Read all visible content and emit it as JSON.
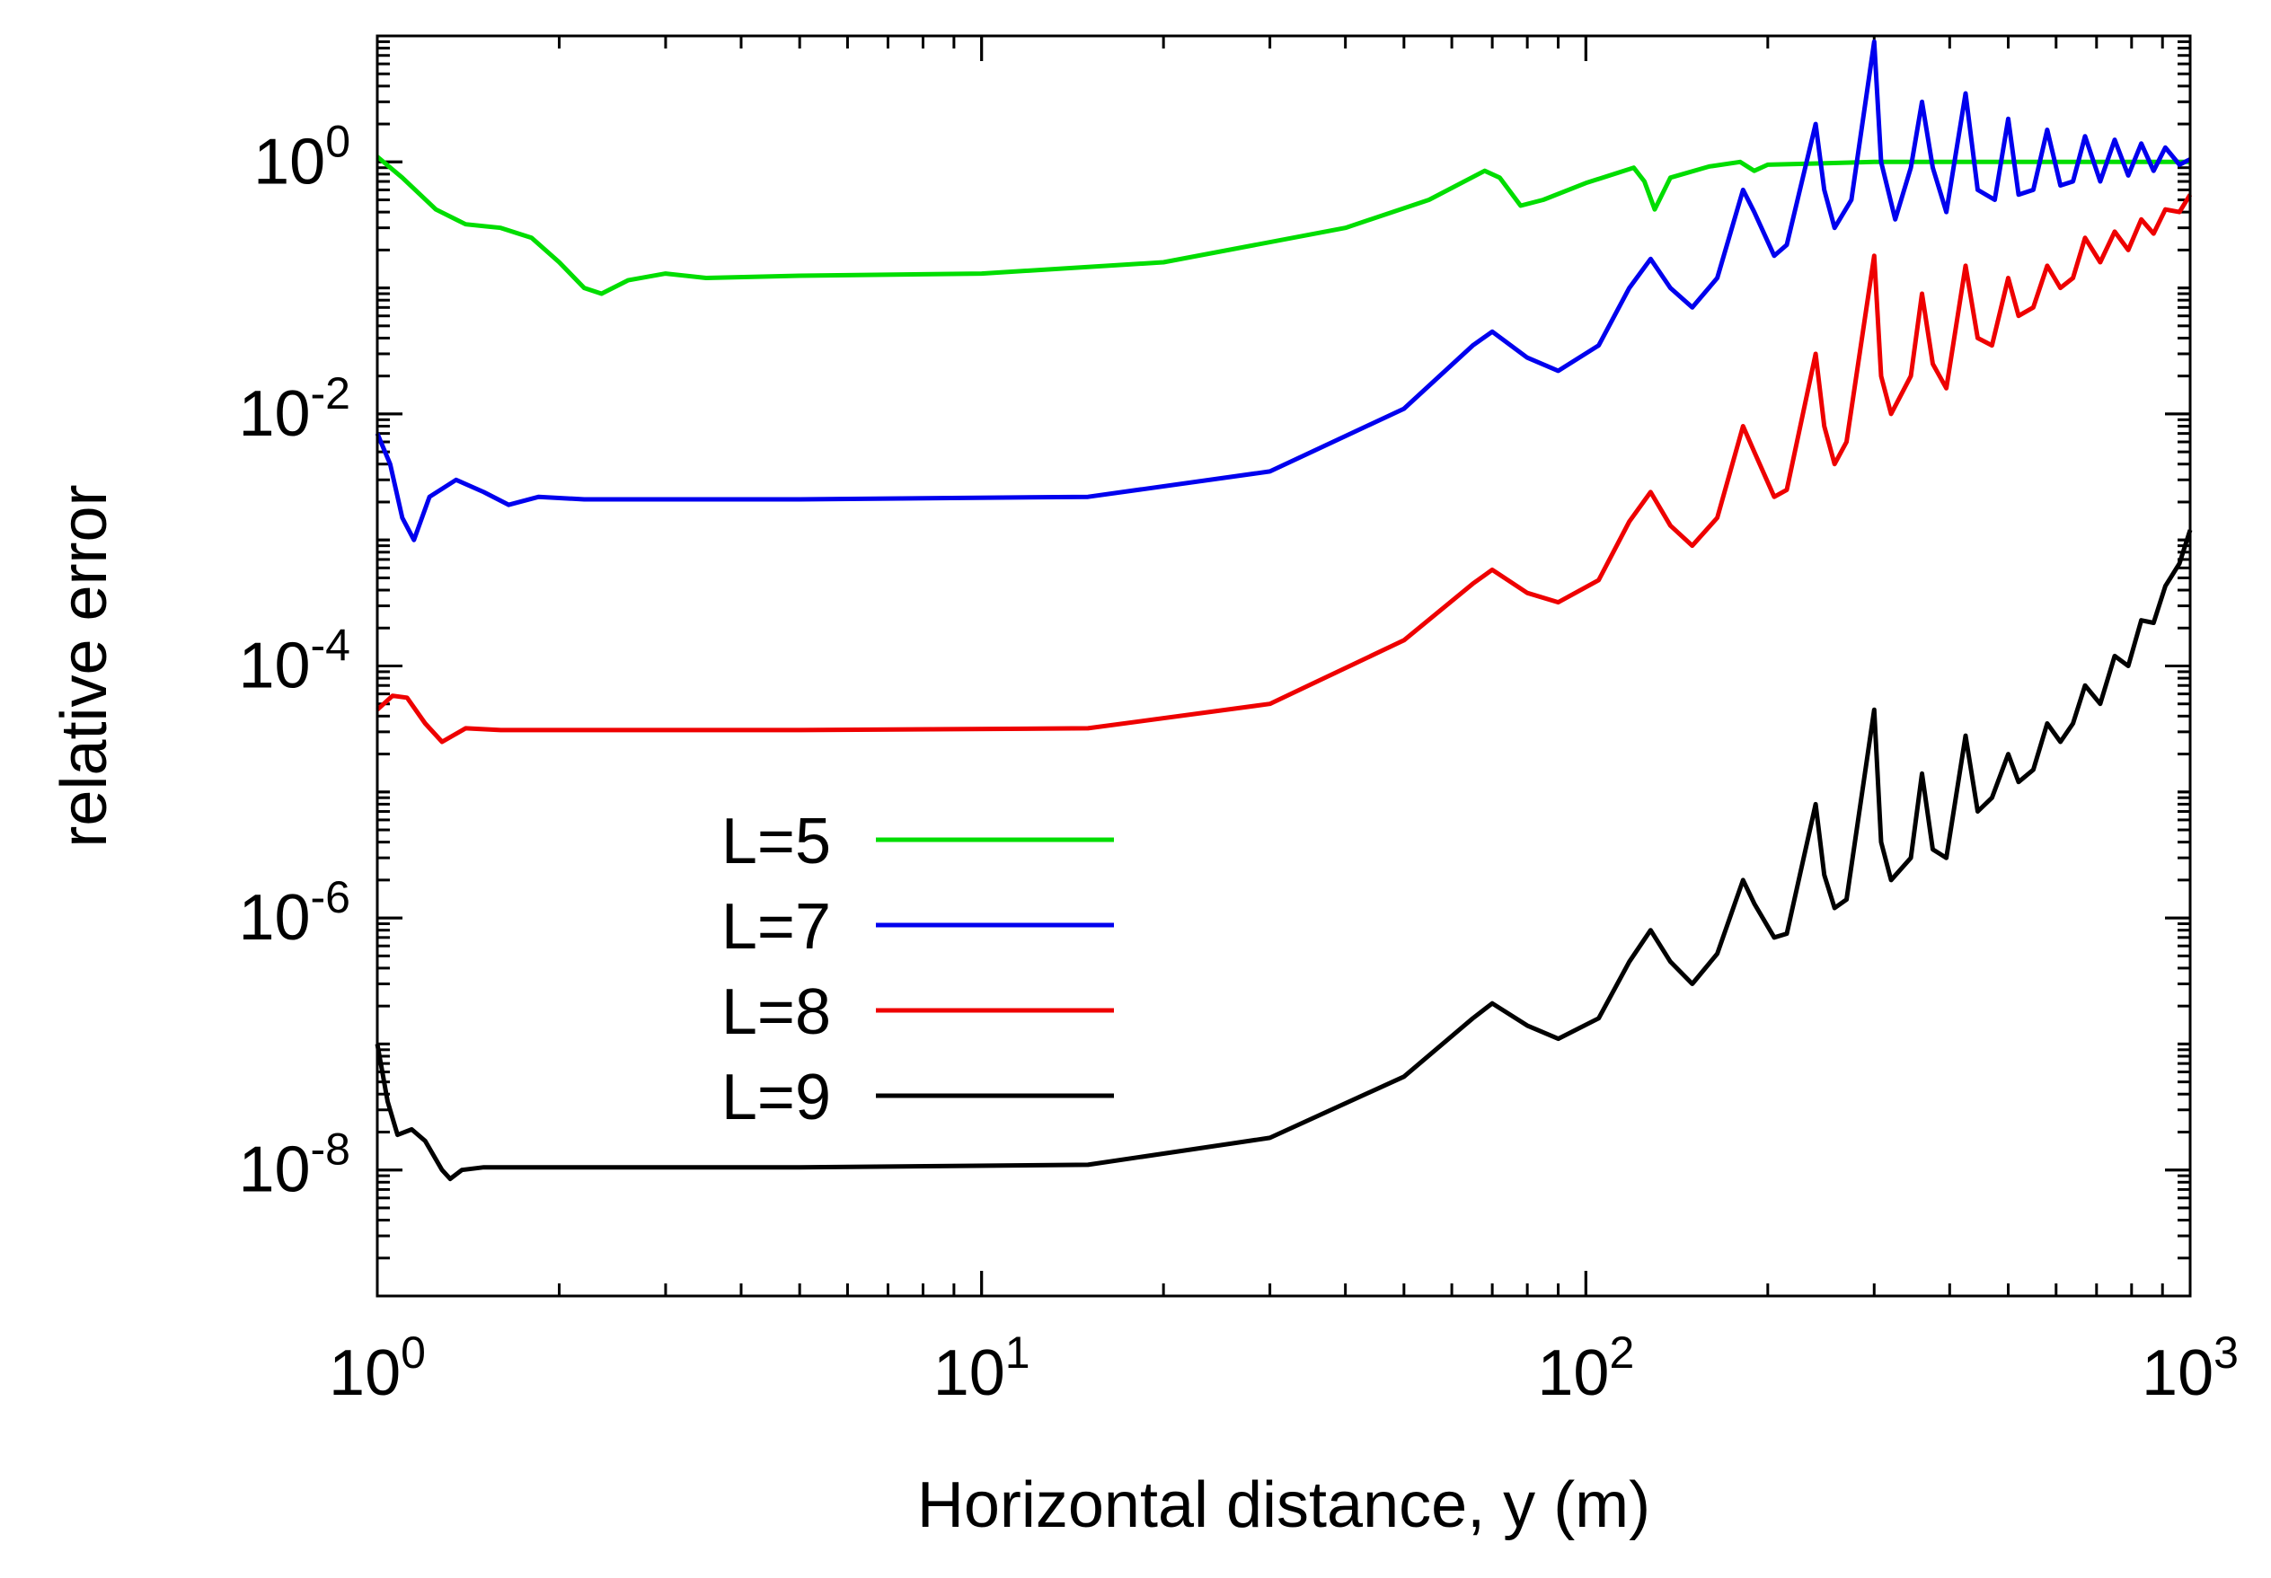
{
  "chart_data": {
    "type": "line",
    "xscale": "log",
    "yscale": "log",
    "xlim_exp": [
      0,
      3
    ],
    "ylim_exp": [
      -9,
      1
    ],
    "xlabel": "Horizontal distance,  y (m)",
    "ylabel": "relative error",
    "legend_position": "lower-left",
    "x_ticks": [
      {
        "base": "10",
        "exp": "0",
        "value_exp": 0
      },
      {
        "base": "10",
        "exp": "1",
        "value_exp": 1
      },
      {
        "base": "10",
        "exp": "2",
        "value_exp": 2
      },
      {
        "base": "10",
        "exp": "3",
        "value_exp": 3
      }
    ],
    "y_ticks": [
      {
        "base": "10",
        "exp": "0",
        "value_exp": 0
      },
      {
        "base": "10",
        "exp": "-2",
        "value_exp": -2
      },
      {
        "base": "10",
        "exp": "-4",
        "value_exp": -4
      },
      {
        "base": "10",
        "exp": "-6",
        "value_exp": -6
      },
      {
        "base": "10",
        "exp": "-8",
        "value_exp": -8
      }
    ],
    "series": [
      {
        "name": "L=5",
        "color": "#00dd00",
        "points": [
          [
            1.0,
            1.1
          ],
          [
            1.1,
            0.75
          ],
          [
            1.25,
            0.42
          ],
          [
            1.4,
            0.32
          ],
          [
            1.6,
            0.3
          ],
          [
            1.8,
            0.25
          ],
          [
            2.0,
            0.16
          ],
          [
            2.2,
            0.1
          ],
          [
            2.35,
            0.09
          ],
          [
            2.6,
            0.115
          ],
          [
            3.0,
            0.13
          ],
          [
            3.5,
            0.12
          ],
          [
            5.0,
            0.125
          ],
          [
            10.0,
            0.13
          ],
          [
            20.0,
            0.16
          ],
          [
            40.0,
            0.3
          ],
          [
            55.0,
            0.5
          ],
          [
            68.0,
            0.85
          ],
          [
            72.0,
            0.75
          ],
          [
            78.0,
            0.45
          ],
          [
            85.0,
            0.5
          ],
          [
            100.0,
            0.68
          ],
          [
            120.0,
            0.9
          ],
          [
            125.0,
            0.7
          ],
          [
            130.0,
            0.42
          ],
          [
            138.0,
            0.75
          ],
          [
            160.0,
            0.92
          ],
          [
            180.0,
            1.0
          ],
          [
            190.0,
            0.85
          ],
          [
            200.0,
            0.95
          ],
          [
            300.0,
            1.0
          ],
          [
            1000.0,
            1.0
          ]
        ]
      },
      {
        "name": "L=7",
        "color": "#0000ee",
        "points": [
          [
            1.0,
            0.007
          ],
          [
            1.05,
            0.004
          ],
          [
            1.1,
            0.0015
          ],
          [
            1.15,
            0.001
          ],
          [
            1.22,
            0.0022
          ],
          [
            1.35,
            0.003
          ],
          [
            1.5,
            0.0024
          ],
          [
            1.65,
            0.0019
          ],
          [
            1.85,
            0.0022
          ],
          [
            2.2,
            0.0021
          ],
          [
            5.0,
            0.0021
          ],
          [
            15.0,
            0.0022
          ],
          [
            30.0,
            0.0035
          ],
          [
            50.0,
            0.011
          ],
          [
            65.0,
            0.035
          ],
          [
            70.0,
            0.045
          ],
          [
            80.0,
            0.028
          ],
          [
            90.0,
            0.022
          ],
          [
            105.0,
            0.035
          ],
          [
            118.0,
            0.1
          ],
          [
            128.0,
            0.17
          ],
          [
            138.0,
            0.1
          ],
          [
            150.0,
            0.07
          ],
          [
            165.0,
            0.12
          ],
          [
            182.0,
            0.6
          ],
          [
            190.0,
            0.4
          ],
          [
            205.0,
            0.18
          ],
          [
            215.0,
            0.22
          ],
          [
            240.0,
            2.0
          ],
          [
            248.0,
            0.6
          ],
          [
            258.0,
            0.3
          ],
          [
            275.0,
            0.5
          ],
          [
            300.0,
            9.0
          ],
          [
            308.0,
            1.0
          ],
          [
            325.0,
            0.35
          ],
          [
            345.0,
            0.9
          ],
          [
            360.0,
            3.0
          ],
          [
            375.0,
            0.9
          ],
          [
            395.0,
            0.4
          ],
          [
            425.0,
            3.5
          ],
          [
            445.0,
            0.6
          ],
          [
            475.0,
            0.5
          ],
          [
            500.0,
            2.2
          ],
          [
            520.0,
            0.55
          ],
          [
            550.0,
            0.6
          ],
          [
            580.0,
            1.8
          ],
          [
            610.0,
            0.65
          ],
          [
            640.0,
            0.7
          ],
          [
            670.0,
            1.6
          ],
          [
            710.0,
            0.7
          ],
          [
            750.0,
            1.5
          ],
          [
            790.0,
            0.78
          ],
          [
            830.0,
            1.4
          ],
          [
            870.0,
            0.85
          ],
          [
            910.0,
            1.3
          ],
          [
            960.0,
            0.95
          ],
          [
            1000.0,
            1.05
          ]
        ]
      },
      {
        "name": "L=8",
        "color": "#ee0000",
        "points": [
          [
            1.0,
            4.5e-05
          ],
          [
            1.06,
            5.8e-05
          ],
          [
            1.12,
            5.6e-05
          ],
          [
            1.2,
            3.5e-05
          ],
          [
            1.28,
            2.5e-05
          ],
          [
            1.4,
            3.2e-05
          ],
          [
            1.6,
            3.1e-05
          ],
          [
            2.0,
            3.1e-05
          ],
          [
            5.0,
            3.1e-05
          ],
          [
            15.0,
            3.2e-05
          ],
          [
            30.0,
            5e-05
          ],
          [
            50.0,
            0.00016
          ],
          [
            65.0,
            0.00045
          ],
          [
            70.0,
            0.00058
          ],
          [
            80.0,
            0.00038
          ],
          [
            90.0,
            0.00032
          ],
          [
            105.0,
            0.00048
          ],
          [
            118.0,
            0.0014
          ],
          [
            128.0,
            0.0024
          ],
          [
            138.0,
            0.0013
          ],
          [
            150.0,
            0.0009
          ],
          [
            165.0,
            0.0015
          ],
          [
            182.0,
            0.008
          ],
          [
            190.0,
            0.005
          ],
          [
            205.0,
            0.0022
          ],
          [
            215.0,
            0.0025
          ],
          [
            240.0,
            0.03
          ],
          [
            248.0,
            0.008
          ],
          [
            258.0,
            0.004
          ],
          [
            270.0,
            0.006
          ],
          [
            300.0,
            0.18
          ],
          [
            308.0,
            0.02
          ],
          [
            320.0,
            0.01
          ],
          [
            345.0,
            0.02
          ],
          [
            360.0,
            0.09
          ],
          [
            375.0,
            0.025
          ],
          [
            395.0,
            0.016
          ],
          [
            425.0,
            0.15
          ],
          [
            445.0,
            0.04
          ],
          [
            470.0,
            0.035
          ],
          [
            500.0,
            0.12
          ],
          [
            520.0,
            0.06
          ],
          [
            550.0,
            0.07
          ],
          [
            580.0,
            0.15
          ],
          [
            610.0,
            0.1
          ],
          [
            640.0,
            0.12
          ],
          [
            670.0,
            0.25
          ],
          [
            710.0,
            0.16
          ],
          [
            750.0,
            0.28
          ],
          [
            790.0,
            0.2
          ],
          [
            830.0,
            0.35
          ],
          [
            870.0,
            0.27
          ],
          [
            910.0,
            0.42
          ],
          [
            960.0,
            0.4
          ],
          [
            1000.0,
            0.55
          ]
        ]
      },
      {
        "name": "L=9",
        "color": "#000000",
        "points": [
          [
            1.0,
            1e-07
          ],
          [
            1.04,
            3.5e-08
          ],
          [
            1.08,
            1.9e-08
          ],
          [
            1.14,
            2.1e-08
          ],
          [
            1.2,
            1.7e-08
          ],
          [
            1.28,
            1e-08
          ],
          [
            1.32,
            8.5e-09
          ],
          [
            1.38,
            1e-08
          ],
          [
            1.5,
            1.05e-08
          ],
          [
            2.0,
            1.05e-08
          ],
          [
            5.0,
            1.05e-08
          ],
          [
            15.0,
            1.1e-08
          ],
          [
            30.0,
            1.8e-08
          ],
          [
            50.0,
            5.5e-08
          ],
          [
            65.0,
            1.6e-07
          ],
          [
            70.0,
            2.1e-07
          ],
          [
            80.0,
            1.4e-07
          ],
          [
            90.0,
            1.1e-07
          ],
          [
            105.0,
            1.6e-07
          ],
          [
            118.0,
            4.5e-07
          ],
          [
            128.0,
            8e-07
          ],
          [
            138.0,
            4.5e-07
          ],
          [
            150.0,
            3e-07
          ],
          [
            165.0,
            5.2e-07
          ],
          [
            182.0,
            2e-06
          ],
          [
            190.0,
            1.3e-06
          ],
          [
            205.0,
            7e-07
          ],
          [
            215.0,
            7.5e-07
          ],
          [
            240.0,
            8e-06
          ],
          [
            248.0,
            2.2e-06
          ],
          [
            258.0,
            1.2e-06
          ],
          [
            270.0,
            1.4e-06
          ],
          [
            300.0,
            4.5e-05
          ],
          [
            308.0,
            4e-06
          ],
          [
            320.0,
            2e-06
          ],
          [
            345.0,
            3e-06
          ],
          [
            360.0,
            1.4e-05
          ],
          [
            375.0,
            3.5e-06
          ],
          [
            395.0,
            3e-06
          ],
          [
            425.0,
            2.8e-05
          ],
          [
            445.0,
            7e-06
          ],
          [
            470.0,
            9e-06
          ],
          [
            500.0,
            2e-05
          ],
          [
            520.0,
            1.2e-05
          ],
          [
            550.0,
            1.5e-05
          ],
          [
            580.0,
            3.5e-05
          ],
          [
            610.0,
            2.5e-05
          ],
          [
            640.0,
            3.5e-05
          ],
          [
            670.0,
            7e-05
          ],
          [
            710.0,
            5e-05
          ],
          [
            750.0,
            0.00012
          ],
          [
            790.0,
            0.0001
          ],
          [
            830.0,
            0.00023
          ],
          [
            870.0,
            0.00022
          ],
          [
            910.0,
            0.00043
          ],
          [
            960.0,
            0.00065
          ],
          [
            1000.0,
            0.0012
          ]
        ]
      }
    ]
  }
}
